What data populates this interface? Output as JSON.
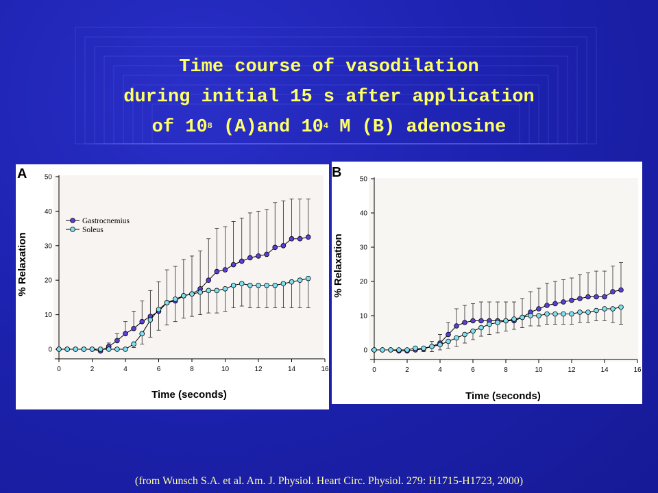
{
  "title": {
    "line1": "Time course of vasodilation",
    "line2": "during initial 15 s after application",
    "line3_a": "of 10",
    "line3_sup_a": "8",
    "line3_b": " (A)and 10",
    "line3_sup_b": "4",
    "line3_c": " M (B) adenosine"
  },
  "citation": "(from Wunsch S.A. et al. Am. J. Physiol. Heart Circ. Physiol. 279: H1715-H1723, 2000)",
  "colors": {
    "gastrocnemius": "#5a3fd6",
    "soleus": "#7fe0f0",
    "plot_bg_a": "#f7f4f2",
    "plot_bg_b": "#f8f6f3"
  },
  "chart_data": [
    {
      "type": "line",
      "panel_label": "A",
      "xlabel": "Time (seconds)",
      "ylabel": "% Relaxation",
      "xlim": [
        0,
        16
      ],
      "ylim": [
        0,
        50
      ],
      "xticks": [
        0,
        2,
        4,
        6,
        8,
        10,
        12,
        14,
        16
      ],
      "yticks": [
        0,
        10,
        20,
        30,
        40,
        50
      ],
      "legend": {
        "placement": "upper-left",
        "entries": [
          "Gastrocnemius",
          "Soleus"
        ]
      },
      "x": [
        0,
        0.5,
        1,
        1.5,
        2,
        2.5,
        3,
        3.5,
        4,
        4.5,
        5,
        5.5,
        6,
        6.5,
        7,
        7.5,
        8,
        8.5,
        9,
        9.5,
        10,
        10.5,
        11,
        11.5,
        12,
        12.5,
        13,
        13.5,
        14,
        14.5,
        15
      ],
      "series": [
        {
          "name": "Gastrocnemius",
          "values": [
            0,
            0,
            0,
            0,
            0,
            -0.5,
            0.8,
            2.5,
            4.5,
            6,
            8,
            9.5,
            11,
            13.5,
            14,
            15.5,
            16,
            17.5,
            20,
            22.5,
            23,
            24.5,
            25.5,
            26.5,
            27,
            27.5,
            29.5,
            30,
            32,
            32,
            32.5
          ],
          "errors": [
            0,
            0,
            0,
            0,
            0,
            0,
            1,
            2,
            3.5,
            5,
            6,
            7.5,
            8.5,
            9.5,
            10,
            10.5,
            11,
            11,
            12,
            12.5,
            12.5,
            12.5,
            12.5,
            13,
            13,
            13,
            13,
            13,
            11.5,
            11.5,
            11
          ]
        },
        {
          "name": "Soleus",
          "values": [
            0,
            0,
            0,
            0,
            0,
            0,
            0,
            0,
            0,
            1.5,
            4.5,
            8.5,
            11.5,
            13.5,
            14.5,
            15.5,
            16,
            16.5,
            17,
            17,
            17.5,
            18.5,
            19,
            18.5,
            18.5,
            18.5,
            18.5,
            19,
            19.5,
            20,
            20.5
          ],
          "errors": [
            0,
            0,
            0,
            0,
            0,
            0,
            0,
            0,
            0,
            1,
            3,
            5,
            6,
            6.5,
            6.5,
            6.5,
            6.5,
            6.5,
            6.5,
            6.5,
            6.5,
            6.5,
            6.5,
            6.5,
            6.5,
            6.5,
            6.5,
            7,
            7.5,
            8,
            8.5
          ]
        }
      ]
    },
    {
      "type": "line",
      "panel_label": "B",
      "xlabel": "Time (seconds)",
      "ylabel": "% Relaxation",
      "xlim": [
        0,
        16
      ],
      "ylim": [
        0,
        50
      ],
      "xticks": [
        0,
        2,
        4,
        6,
        8,
        10,
        12,
        14,
        16
      ],
      "yticks": [
        0,
        10,
        20,
        30,
        40,
        50
      ],
      "legend": null,
      "x": [
        0,
        0.5,
        1,
        1.5,
        2,
        2.5,
        3,
        3.5,
        4,
        4.5,
        5,
        5.5,
        6,
        6.5,
        7,
        7.5,
        8,
        8.5,
        9,
        9.5,
        10,
        10.5,
        11,
        11.5,
        12,
        12.5,
        13,
        13.5,
        14,
        14.5,
        15
      ],
      "series": [
        {
          "name": "Gastrocnemius",
          "values": [
            0,
            0,
            0,
            -0.3,
            -0.3,
            0,
            0.3,
            1,
            2,
            4.5,
            7,
            8,
            8.5,
            8.5,
            8.5,
            8.5,
            8.5,
            8.5,
            9.5,
            11,
            12,
            13,
            13.5,
            14,
            14.5,
            15,
            15.5,
            15.5,
            15.5,
            17,
            17.5
          ],
          "errors": [
            0,
            0,
            0,
            0,
            0,
            0,
            0.5,
            1.5,
            2.5,
            3.5,
            5,
            5,
            5,
            5.5,
            5.5,
            5.5,
            5.5,
            5.5,
            5.5,
            6,
            6,
            6.5,
            6.5,
            6.5,
            6.5,
            7,
            7,
            7.5,
            7.5,
            7.5,
            8
          ]
        },
        {
          "name": "Soleus",
          "values": [
            0,
            0,
            0,
            0,
            0,
            0.5,
            0.5,
            1,
            1.5,
            2.5,
            3.5,
            4.5,
            5.5,
            6.5,
            7.5,
            8,
            8.5,
            9,
            9.5,
            10,
            10,
            10.5,
            10.5,
            10.5,
            10.5,
            11,
            11,
            11.5,
            12,
            12,
            12.5
          ],
          "errors": [
            0,
            0,
            0,
            0,
            0,
            0.5,
            1,
            1.5,
            1.5,
            2,
            2.5,
            2.5,
            2.5,
            2.5,
            3,
            3,
            3,
            3,
            3,
            3,
            3,
            3,
            3,
            3,
            3,
            3,
            3,
            3,
            3.5,
            4,
            5
          ]
        }
      ]
    }
  ]
}
